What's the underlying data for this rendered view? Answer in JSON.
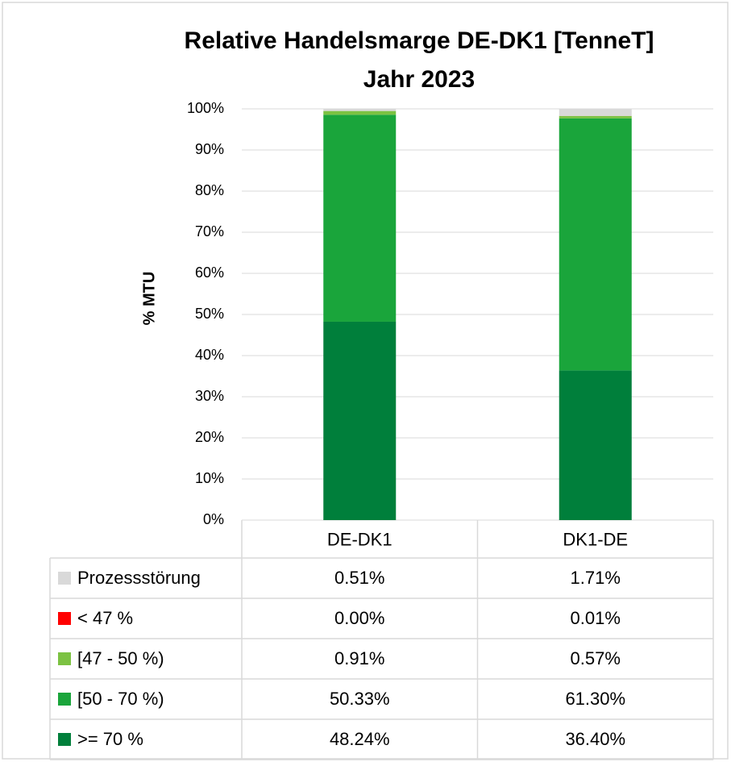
{
  "chart_data": {
    "type": "stacked_bar",
    "title": [
      "Relative Handelsmarge DE-DK1 [TenneT]",
      "Jahr 2023"
    ],
    "y_label": "% MTU",
    "categories": [
      "DE-DK1",
      "DK1-DE"
    ],
    "ylim": [
      0,
      100
    ],
    "yticks": [
      {
        "value": 0,
        "label": "0%"
      },
      {
        "value": 10,
        "label": "10%"
      },
      {
        "value": 20,
        "label": "20%"
      },
      {
        "value": 30,
        "label": "30%"
      },
      {
        "value": 40,
        "label": "40%"
      },
      {
        "value": 50,
        "label": "50%"
      },
      {
        "value": 60,
        "label": "60%"
      },
      {
        "value": 70,
        "label": "70%"
      },
      {
        "value": 80,
        "label": "80%"
      },
      {
        "value": 90,
        "label": "90%"
      },
      {
        "value": 100,
        "label": "100%"
      }
    ],
    "grid": true,
    "series": [
      {
        "name": "Prozessstörung",
        "color": "#d9d9d9",
        "values": [
          0.51,
          1.71
        ],
        "value_labels": [
          "0.51%",
          "1.71%"
        ]
      },
      {
        "name": "< 47 %",
        "color": "#ff0000",
        "values": [
          0.0,
          0.01
        ],
        "value_labels": [
          "0.00%",
          "0.01%"
        ]
      },
      {
        "name": "[47 - 50 %)",
        "color": "#7cc242",
        "values": [
          0.91,
          0.57
        ],
        "value_labels": [
          "0.91%",
          "0.57%"
        ]
      },
      {
        "name": "[50 - 70 %)",
        "color": "#1aa53b",
        "values": [
          50.33,
          61.3
        ],
        "value_labels": [
          "50.33%",
          "61.30%"
        ]
      },
      {
        "name": ">= 70 %",
        "color": "#007f3b",
        "values": [
          48.24,
          36.4
        ],
        "value_labels": [
          "48.24%",
          "36.40%"
        ]
      }
    ]
  }
}
